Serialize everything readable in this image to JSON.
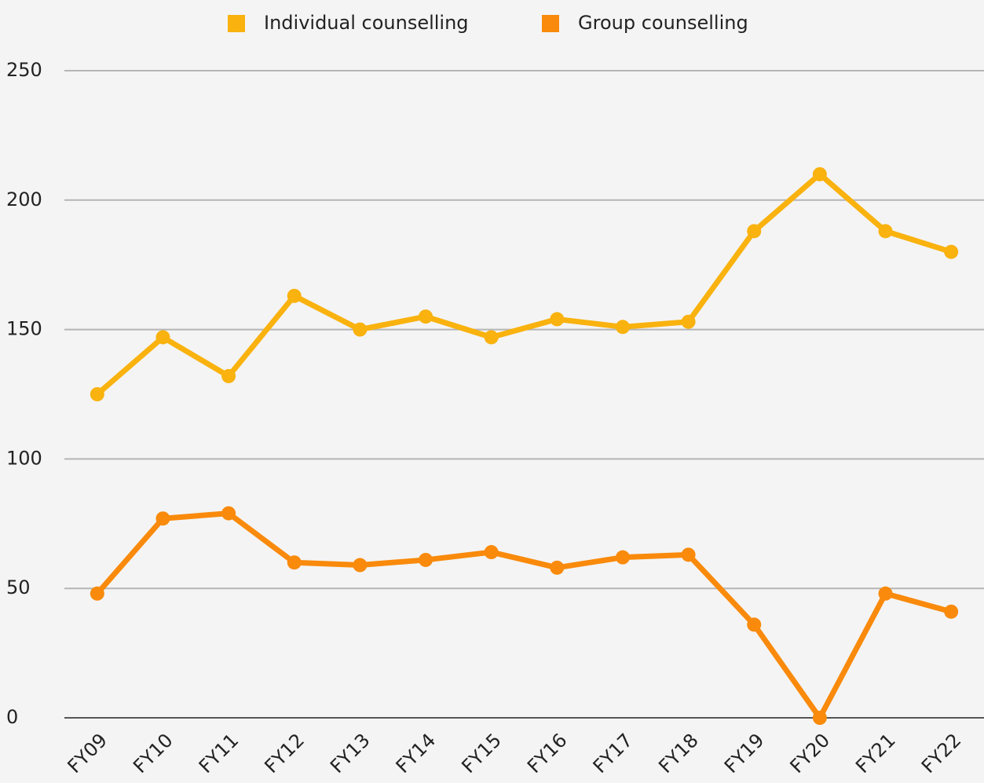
{
  "chart_data": {
    "type": "line",
    "categories": [
      "FY09",
      "FY10",
      "FY11",
      "FY12",
      "FY13",
      "FY14",
      "FY15",
      "FY16",
      "FY17",
      "FY18",
      "FY19",
      "FY20",
      "FY21",
      "FY22"
    ],
    "series": [
      {
        "name": "Individual counselling",
        "color": "#f9b20e",
        "values": [
          125,
          147,
          132,
          163,
          150,
          155,
          147,
          154,
          151,
          153,
          188,
          210,
          188,
          180
        ]
      },
      {
        "name": "Group counselling",
        "color": "#f98a0b",
        "values": [
          48,
          77,
          79,
          60,
          59,
          61,
          64,
          58,
          62,
          63,
          36,
          0,
          48,
          41
        ]
      }
    ],
    "ylim": [
      0,
      250
    ],
    "yticks": [
      0,
      50,
      100,
      150,
      200,
      250
    ],
    "grid": true,
    "legend": "top"
  }
}
